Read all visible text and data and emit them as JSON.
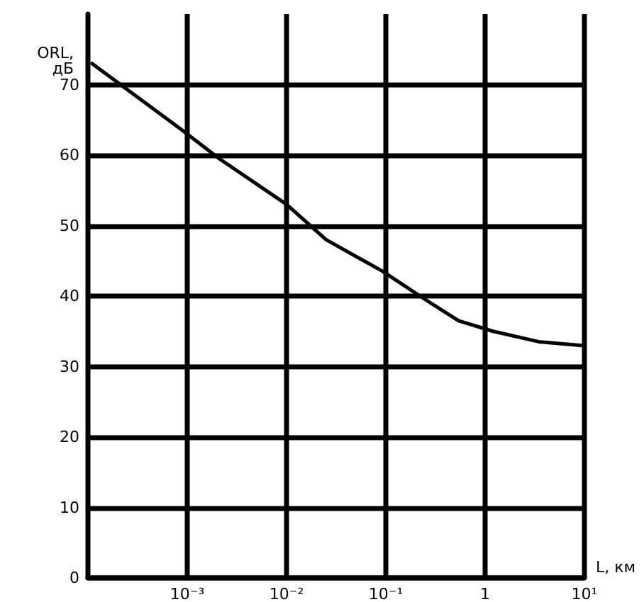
{
  "chart_data": {
    "type": "line",
    "xlabel": "L, км",
    "ylabel": "ORL, дБ",
    "log": "x",
    "xlim": [
      0.0001,
      10
    ],
    "xticks": [
      {
        "value": 0.001,
        "label": "10⁻³"
      },
      {
        "value": 0.01,
        "label": "10⁻²"
      },
      {
        "value": 0.1,
        "label": "10⁻¹"
      },
      {
        "value": 1,
        "label": "1"
      },
      {
        "value": 10,
        "label": "10¹"
      }
    ],
    "ylim": [
      0,
      80
    ],
    "yticks": [
      0,
      10,
      20,
      30,
      40,
      50,
      60,
      70
    ],
    "grid": true,
    "marker": "none",
    "line_style": "solid",
    "series": [
      {
        "color": "#000000",
        "x": [
          0.00011,
          0.001,
          0.0021,
          0.01,
          0.025,
          0.093,
          0.25,
          0.54,
          1.2,
          3.5,
          9.3
        ],
        "values": [
          73,
          63,
          59.5,
          53,
          48,
          43.5,
          39.5,
          36.5,
          35,
          33.5,
          33
        ]
      }
    ]
  }
}
